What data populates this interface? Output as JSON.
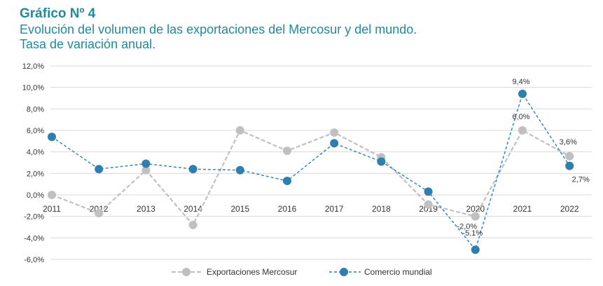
{
  "header": {
    "title": "Gráfico Nº 4",
    "subtitle_line1": "Evolución del volumen de las exportaciones del Mercosur y del mundo.",
    "subtitle_line2": "Tasa de variación anual."
  },
  "colors": {
    "mercosur": "#c0c0c0",
    "mundial": "#2e7fb0",
    "title": "#1f8a9a",
    "grid": "#d9d9d9"
  },
  "chart_data": {
    "type": "line",
    "categories": [
      "2011",
      "2012",
      "2013",
      "2014",
      "2015",
      "2016",
      "2017",
      "2018",
      "2019",
      "2020",
      "2021",
      "2022"
    ],
    "ylim": [
      -6,
      12
    ],
    "yticks": [
      12,
      10,
      8,
      6,
      4,
      2,
      0,
      -2,
      -4,
      -6
    ],
    "ytick_labels": [
      "12,0%",
      "10,0%",
      "8,0%",
      "6,0%",
      "4,0%",
      "2,0%",
      "0,0%",
      "-2,0%",
      "-4,0%",
      "-6,0%"
    ],
    "grid": true,
    "legend": "bottom",
    "series": [
      {
        "name": "Exportaciones Mercosur",
        "style": "dashed",
        "values": [
          0.0,
          -1.7,
          2.3,
          -2.8,
          6.0,
          4.1,
          5.8,
          3.5,
          -0.9,
          -2.0,
          6.0,
          3.6
        ]
      },
      {
        "name": "Comercio mundial",
        "style": "dashed",
        "values": [
          5.4,
          2.4,
          2.9,
          2.4,
          2.3,
          1.3,
          4.8,
          3.1,
          0.3,
          -5.1,
          9.4,
          2.7
        ]
      }
    ],
    "annotations": [
      {
        "series": 0,
        "index": 9,
        "text": "-2,0%"
      },
      {
        "series": 0,
        "index": 10,
        "text": "6,0%"
      },
      {
        "series": 0,
        "index": 11,
        "text": "3,6%"
      },
      {
        "series": 1,
        "index": 9,
        "text": "-5,1%"
      },
      {
        "series": 1,
        "index": 10,
        "text": "9,4%"
      },
      {
        "series": 1,
        "index": 11,
        "text": "2,7%"
      }
    ]
  }
}
